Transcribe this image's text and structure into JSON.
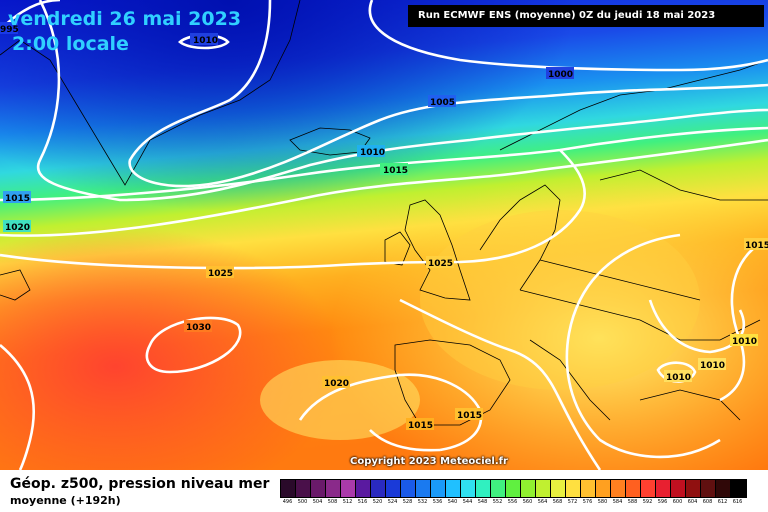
{
  "header": {
    "date": "vendredi 26 mai 2023",
    "time": "2:00 locale",
    "run_info": "Run ECMWF ENS (moyenne) 0Z du jeudi 18 mai 2023"
  },
  "copyright": "Copyright 2023 Meteociel.fr",
  "footer": {
    "title": "Géop. z500, pression niveau mer",
    "subtitle": "moyenne  (+192h)"
  },
  "isobar_labels": [
    "1010",
    "1000",
    "1005",
    "1010",
    "1015",
    "1015",
    "1020",
    "1025",
    "1025",
    "1030",
    "1020",
    "1015",
    "1015",
    "1010",
    "1010",
    "1010",
    "1015",
    "995"
  ],
  "scale": {
    "labels": [
      "496",
      "500",
      "504",
      "508",
      "512",
      "516",
      "520",
      "524",
      "528",
      "532",
      "536",
      "540",
      "544",
      "548",
      "552",
      "556",
      "560",
      "564",
      "568",
      "572",
      "576",
      "580",
      "584",
      "588",
      "592",
      "596",
      "600",
      "604",
      "608",
      "612",
      "616"
    ],
    "colors": [
      "#2a0a2a",
      "#4a104a",
      "#6a1a6a",
      "#8a2a8a",
      "#aa3aaa",
      "#5a1aa0",
      "#2a2ac0",
      "#1a3ad8",
      "#1a5ae8",
      "#1a7af0",
      "#1a9af8",
      "#20c0ff",
      "#30e0f0",
      "#30f0c0",
      "#40f080",
      "#60f040",
      "#90f030",
      "#c0f030",
      "#e8f040",
      "#ffe040",
      "#ffc030",
      "#ffa020",
      "#ff8020",
      "#ff6020",
      "#ff4030",
      "#e82030",
      "#c01020",
      "#901010",
      "#601010",
      "#300808",
      "#000000"
    ]
  }
}
